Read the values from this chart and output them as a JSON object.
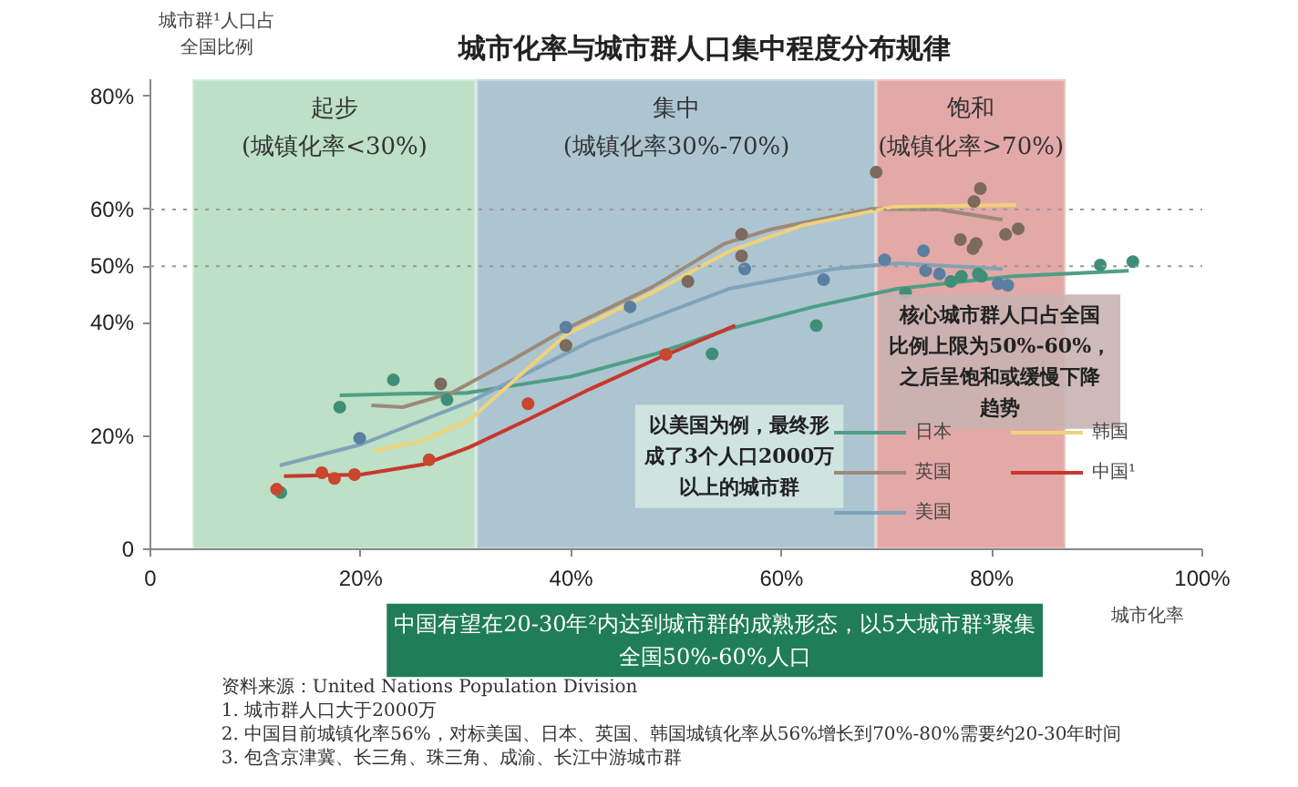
{
  "chart_data": {
    "type": "line",
    "title": "城市化率与城市群人口集中程度分布规律",
    "xlabel": "城市化率",
    "ylabel": "城市群¹人口占全国比例",
    "xlim": [
      0,
      100
    ],
    "ylim": [
      0,
      83
    ],
    "xticks": [
      0,
      {
        "value": 20,
        "label": "20%"
      },
      {
        "value": 40,
        "label": "40%"
      },
      {
        "value": 60,
        "label": "60%"
      },
      {
        "value": 80,
        "label": "80%"
      },
      {
        "value": 100,
        "label": "100%"
      }
    ],
    "yticks": [
      0,
      {
        "value": 20,
        "label": "20%"
      },
      {
        "value": 40,
        "label": "40%"
      },
      {
        "value": 50,
        "label": "50%"
      },
      {
        "value": 60,
        "label": "60%"
      },
      {
        "value": 80,
        "label": "80%"
      }
    ],
    "grid": false,
    "legend": "bottom right",
    "line_style": "solid",
    "bands": [
      {
        "axis": "x",
        "from": 4,
        "to": 31,
        "label": "起步(城镇化率<30%)",
        "color": "#bde0c6"
      },
      {
        "axis": "x",
        "from": 31,
        "to": 69,
        "label": "集中(城镇化率30%-70%)",
        "color": "#adc5d1"
      },
      {
        "axis": "x",
        "from": 69,
        "to": 87,
        "label": "饱和(城镇化率>70%)",
        "color": "#e2a9a7"
      }
    ],
    "ref_lines": [
      {
        "axis": "y",
        "value": 60,
        "line_style": "dotted",
        "color": "#999999"
      },
      {
        "axis": "y",
        "value": 50,
        "line_style": "dotted",
        "color": "#999999"
      }
    ],
    "series": [
      {
        "name": "日本",
        "color": "#4f9e86",
        "x": [
          18,
          25,
          30,
          40,
          48,
          55,
          63,
          71,
          82,
          93
        ],
        "values": [
          27.2,
          27.5,
          27.6,
          30.5,
          34.5,
          38.9,
          42.8,
          46,
          48.2,
          49.2
        ]
      },
      {
        "name": "英国",
        "color": "#9c8a78",
        "x": [
          21,
          24,
          28.6,
          34,
          39.5,
          47.7,
          54.6,
          59,
          68.5,
          75,
          81
        ],
        "values": [
          25.4,
          25.1,
          27.6,
          33,
          38.9,
          46.3,
          54,
          56.5,
          60.1,
          60,
          58.2
        ]
      },
      {
        "name": "美国",
        "color": "#7fa3b8",
        "x": [
          12.3,
          20,
          30.3,
          41.8,
          55,
          65,
          71,
          81
        ],
        "values": [
          14.8,
          18.5,
          26,
          36.7,
          46,
          49.5,
          50.5,
          49.5
        ]
      },
      {
        "name": "韩国",
        "color": "#efd27a",
        "x": [
          21.3,
          25.6,
          30.3,
          39.5,
          47.7,
          55.1,
          62,
          70.7,
          82.3
        ],
        "values": [
          17.4,
          19,
          22.8,
          37.9,
          45.3,
          52.7,
          57.2,
          60.5,
          60.8
        ]
      },
      {
        "name": "中国¹",
        "color": "#c8372d",
        "x": [
          12.7,
          20,
          26,
          30.3,
          36,
          41.8,
          48,
          55.6
        ],
        "values": [
          12.9,
          13.2,
          15,
          18,
          23,
          28.3,
          33.5,
          39.5
        ]
      },
      {
        "type": "scatter",
        "marker": "circle",
        "color": "#3f8f78",
        "x": [
          12.4,
          18,
          23.1,
          28.2,
          53.4,
          63.3,
          71.8,
          76.1,
          77.1,
          78.7,
          79,
          90.3,
          93.4
        ],
        "values": [
          10,
          25.1,
          29.9,
          26.4,
          34.5,
          39.5,
          45.3,
          47.3,
          48.2,
          48.6,
          48.2,
          50.2,
          50.8
        ]
      },
      {
        "type": "scatter",
        "marker": "circle",
        "color": "#7d6a5e",
        "x": [
          27.6,
          39.5,
          51.1,
          56.2,
          56.2,
          69,
          78.9,
          78.3,
          77,
          78.2,
          78.5,
          81.3,
          82.5
        ],
        "values": [
          29.2,
          36,
          47.3,
          55.6,
          51.8,
          66.6,
          63.7,
          61.4,
          54.7,
          53.1,
          54,
          55.6,
          56.6
        ]
      },
      {
        "type": "scatter",
        "marker": "circle",
        "color": "#5b7fa0",
        "x": [
          19.9,
          39.5,
          45.6,
          56.5,
          64,
          69.8,
          73.5,
          73.7,
          75,
          80.6,
          81.5
        ],
        "values": [
          19.6,
          39.2,
          42.8,
          49.5,
          47.6,
          51.1,
          52.7,
          49.2,
          48.6,
          46.9,
          46.6
        ]
      },
      {
        "type": "scatter",
        "marker": "circle",
        "color": "#c8472d",
        "x": [
          12,
          16.3,
          17.5,
          19.4,
          26.5,
          35.9,
          49
        ],
        "values": [
          10.6,
          13.5,
          12.5,
          13.2,
          15.8,
          25.7,
          34.4
        ]
      }
    ],
    "annotations": [
      "以美国为例，最终形成了3个人口2000万以上的城市群",
      "核心城市群人口占全国比例上限为50%-60%，之后呈饱和或缓慢下降趋势",
      "中国有望在20-30年²内达到城市群的成熟形态，以5大城市群³聚集全国50%-60%人口",
      "资料来源：United Nations Population Division",
      "1. 城市群人口大于2000万",
      "2. 中国目前城镇化率56%，对标美国、日本、英国、韩国城镇化率从56%增长到70%-80%需要约20-30年时间",
      "3. 包含京津冀、长三角、珠三角、成渝、长江中游城市群"
    ]
  }
}
